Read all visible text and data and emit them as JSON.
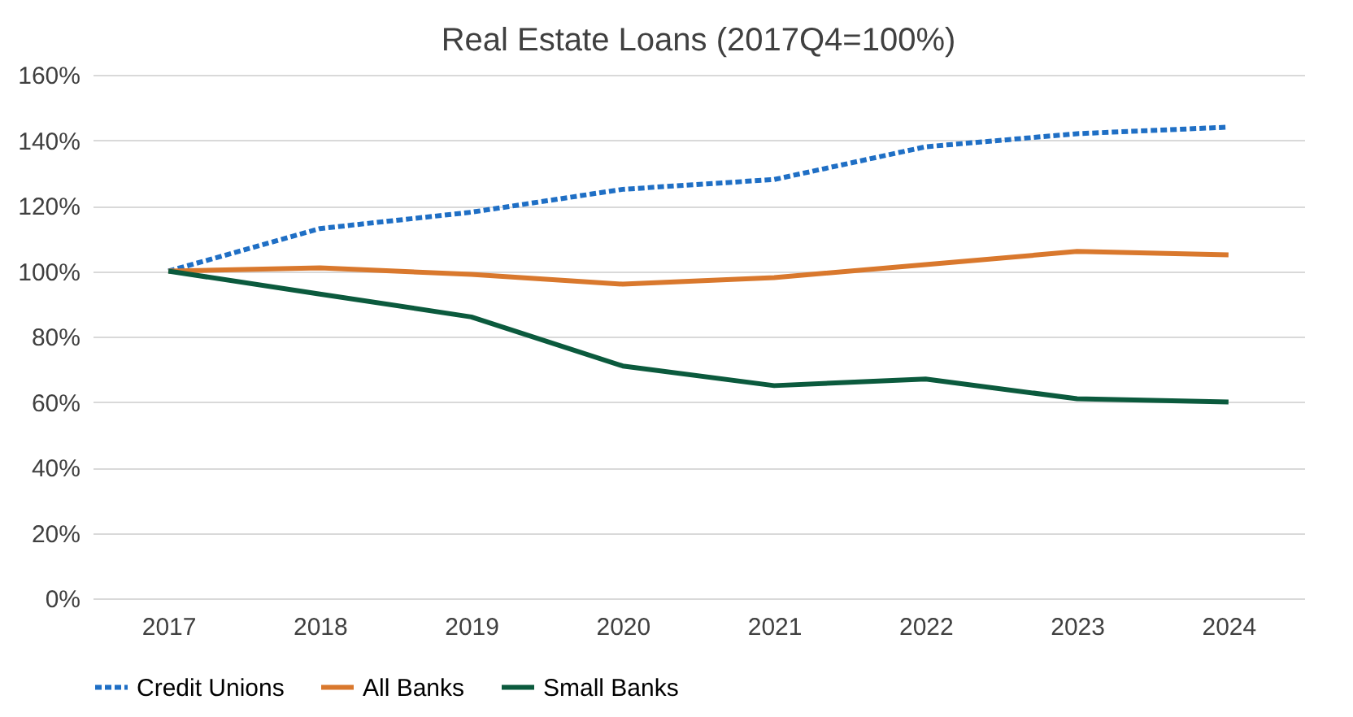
{
  "chart_data": {
    "type": "line",
    "title": "Real Estate Loans (2017Q4=100%)",
    "categories": [
      "2017",
      "2018",
      "2019",
      "2020",
      "2021",
      "2022",
      "2023",
      "2024"
    ],
    "series": [
      {
        "name": "Credit Unions",
        "color": "#1f6fc5",
        "line_style": "dashed",
        "values": [
          100,
          113,
          118,
          125,
          128,
          138,
          142,
          144
        ]
      },
      {
        "name": "All Banks",
        "color": "#d9782d",
        "line_style": "solid",
        "values": [
          100,
          101,
          99,
          96,
          98,
          102,
          106,
          105
        ]
      },
      {
        "name": "Small Banks",
        "color": "#0b5a3d",
        "line_style": "solid",
        "values": [
          100,
          93,
          86,
          71,
          65,
          67,
          61,
          60
        ]
      }
    ],
    "ylim": [
      0,
      160
    ],
    "yticks": [
      {
        "value": 0,
        "label": "0%"
      },
      {
        "value": 20,
        "label": "20%"
      },
      {
        "value": 40,
        "label": "40%"
      },
      {
        "value": 60,
        "label": "60%"
      },
      {
        "value": 80,
        "label": "80%"
      },
      {
        "value": 100,
        "label": "100%"
      },
      {
        "value": 120,
        "label": "120%"
      },
      {
        "value": 140,
        "label": "140%"
      },
      {
        "value": 160,
        "label": "160%"
      }
    ],
    "grid": "y",
    "legend": "bottom",
    "marker": "none"
  }
}
